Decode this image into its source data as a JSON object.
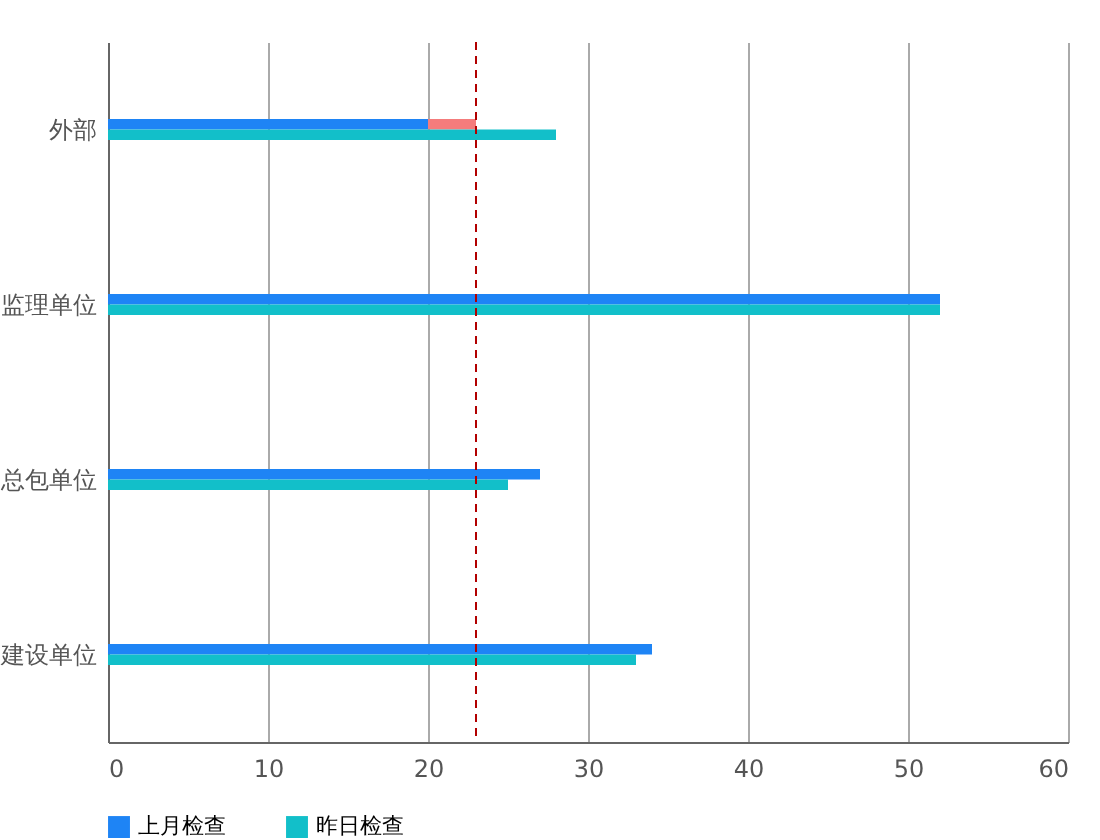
{
  "chart_data": {
    "type": "bar",
    "orientation": "horizontal",
    "categories": [
      "外部",
      "监理单位",
      "总包单位",
      "建设单位"
    ],
    "series": [
      {
        "name": "上月检查",
        "color": "#1e84f5",
        "values": [
          20,
          52,
          27,
          34
        ]
      },
      {
        "color": "#f47c7c",
        "values": [
          3,
          null,
          null,
          null
        ],
        "base": [
          20,
          null,
          null,
          null
        ]
      },
      {
        "name": "昨日检查",
        "color": "#12bfc9",
        "values": [
          28,
          52,
          25,
          33
        ]
      }
    ],
    "xlim": [
      0,
      60
    ],
    "xticks": [
      0,
      10,
      20,
      30,
      40,
      50,
      60
    ],
    "grid": "x",
    "legend": "bottom",
    "ref_lines": [
      {
        "axis": "x",
        "value": 23,
        "color": "#b20000",
        "line_style": "dashed"
      }
    ]
  }
}
